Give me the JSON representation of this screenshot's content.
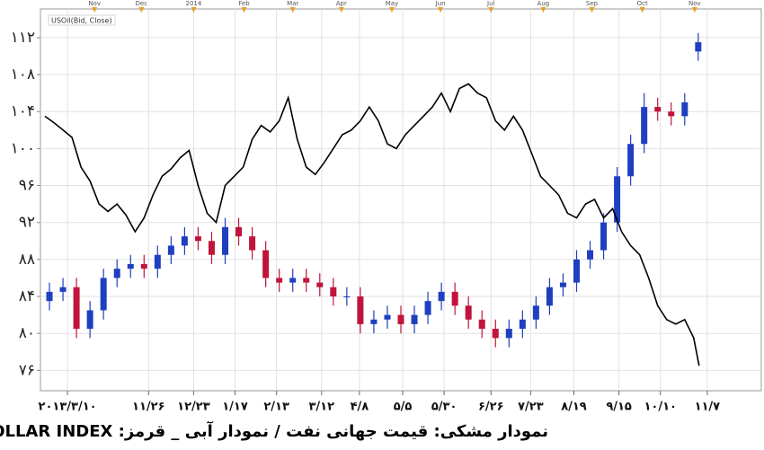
{
  "chart_data": {
    "type": "combo",
    "caption": "نمودار مشکی: قیمت جهانی نفت / نمودار آبی _ قرمز: DOLLAR INDEX",
    "ylim": [
      73.8,
      115.1
    ],
    "yticks": [
      {
        "value": 112,
        "label": "۱۱۲"
      },
      {
        "value": 108,
        "label": "۱۰۸"
      },
      {
        "value": 104,
        "label": "۱۰۴"
      },
      {
        "value": 100,
        "label": "۱۰۰"
      },
      {
        "value": 96,
        "label": "۹۶"
      },
      {
        "value": 92,
        "label": "۹۲"
      },
      {
        "value": 88,
        "label": "۸۸"
      },
      {
        "value": 84,
        "label": "۸۴"
      },
      {
        "value": 80,
        "label": "۸۰"
      },
      {
        "value": 76,
        "label": "۷۶"
      }
    ],
    "xlim": [
      0,
      400
    ],
    "xticks": [
      {
        "value": 15,
        "label": "۲۰۱۳/۳/۱۰"
      },
      {
        "value": 60,
        "label": "۱۱/۲۶"
      },
      {
        "value": 85,
        "label": "۱۲/۲۳"
      },
      {
        "value": 108,
        "label": "۱/۱۷"
      },
      {
        "value": 131,
        "label": "۲/۱۳"
      },
      {
        "value": 156,
        "label": "۳/۱۲"
      },
      {
        "value": 177,
        "label": "۴/۸"
      },
      {
        "value": 201,
        "label": "۵/۵"
      },
      {
        "value": 224,
        "label": "۵/۳۰"
      },
      {
        "value": 250,
        "label": "۶/۲۶"
      },
      {
        "value": 272,
        "label": "۷/۲۳"
      },
      {
        "value": 296,
        "label": "۸/۱۹"
      },
      {
        "value": 321,
        "label": "۹/۱۵"
      },
      {
        "value": 344,
        "label": "۱۰/۱۰"
      },
      {
        "value": 370,
        "label": "۱۱/۷"
      }
    ],
    "x2ticks": [
      {
        "value": 30,
        "label": "Nov"
      },
      {
        "value": 56,
        "label": "Dec"
      },
      {
        "value": 85,
        "label": "2014"
      },
      {
        "value": 113,
        "label": "Feb"
      },
      {
        "value": 140,
        "label": "Mar"
      },
      {
        "value": 167,
        "label": "Apr"
      },
      {
        "value": 195,
        "label": "May"
      },
      {
        "value": 222,
        "label": "Jun"
      },
      {
        "value": 250,
        "label": "Jul"
      },
      {
        "value": 279,
        "label": "Aug"
      },
      {
        "value": 306,
        "label": "Sep"
      },
      {
        "value": 334,
        "label": "Oct"
      },
      {
        "value": 363,
        "label": "Nov"
      }
    ],
    "grid": true,
    "series": [
      {
        "name": "USOil(Bid, Close)",
        "type": "line",
        "color": "#000000",
        "x": [
          2.5,
          7.5,
          12.5,
          17.5,
          22.5,
          27.5,
          32.5,
          37.5,
          42.5,
          47.5,
          52.5,
          57.5,
          62.5,
          67.5,
          72.5,
          77.5,
          82.5,
          87.5,
          92.5,
          97.5,
          102.5,
          107.5,
          112.5,
          117.5,
          122.5,
          127.5,
          132.5,
          137.5,
          142.5,
          147.5,
          152.5,
          157.5,
          162.5,
          167.5,
          172.5,
          177.5,
          182.5,
          187.5,
          192.5,
          197.5,
          202.5,
          207.5,
          212.5,
          217.5,
          222.5,
          227.5,
          232.5,
          237.5,
          242.5,
          247.5,
          252.5,
          257.5,
          262.5,
          267.5,
          272.5,
          277.5,
          282.5,
          287.5,
          292.5,
          297.5,
          302.5,
          307.5,
          312.5,
          317.5,
          322.5,
          327.5,
          332.5,
          337.5,
          342.5,
          347.5,
          352.5,
          357.5,
          362.5,
          365.5
        ],
        "values": [
          103.5,
          102.8,
          102,
          101.2,
          98,
          96.5,
          94,
          93.2,
          94,
          92.8,
          91,
          92.5,
          95,
          97,
          97.8,
          99,
          99.8,
          96,
          93,
          92,
          96,
          97,
          98,
          101,
          102.5,
          101.8,
          103,
          105.5,
          101,
          98,
          97.2,
          98.5,
          100,
          101.5,
          102,
          103,
          104.5,
          103,
          100.5,
          100,
          101.5,
          102.5,
          103.5,
          104.5,
          106,
          104,
          106.5,
          107,
          106,
          105.5,
          103,
          102,
          103.5,
          102,
          99.5,
          97,
          96,
          95,
          93,
          92.5,
          94,
          94.5,
          92.5,
          93.5,
          91,
          89.5,
          88.5,
          86,
          83,
          81.5,
          81,
          81.5,
          79.5,
          76.5
        ]
      },
      {
        "type": "candlestick",
        "up_color": "#1f3fbf",
        "down_color": "#c0143c",
        "x": [
          5,
          12.5,
          20,
          27.5,
          35,
          42.5,
          50,
          57.5,
          65,
          72.5,
          80,
          87.5,
          95,
          102.5,
          110,
          117.5,
          125,
          132.5,
          140,
          147.5,
          155,
          162.5,
          170,
          177.5,
          185,
          192.5,
          200,
          207.5,
          215,
          222.5,
          230,
          237.5,
          245,
          252.5,
          260,
          267.5,
          275,
          282.5,
          290,
          297.5,
          305,
          312.5,
          320,
          327.5,
          335,
          342.5,
          350,
          357.5,
          365
        ],
        "open": [
          83.5,
          84.5,
          85,
          80.5,
          82.5,
          86,
          87,
          87.5,
          87,
          88.5,
          89.5,
          90.5,
          90,
          88.5,
          91.5,
          90.5,
          89,
          86,
          85.5,
          86,
          85.5,
          85,
          84,
          84,
          81,
          81.5,
          82,
          81,
          82,
          83.5,
          84.5,
          83,
          81.5,
          80.5,
          79.5,
          80.5,
          81.5,
          83,
          85,
          85.5,
          88,
          89,
          92,
          97,
          100.5,
          104.5,
          104,
          103.5,
          110.5
        ],
        "high": [
          85.5,
          86,
          86,
          83.5,
          87,
          88,
          88.5,
          88.5,
          89.5,
          90.5,
          91.5,
          91.5,
          91,
          92.5,
          92.5,
          91.5,
          90,
          87,
          87,
          87,
          86.5,
          86,
          85,
          85,
          82.5,
          83,
          83,
          83,
          84.5,
          85.5,
          85.5,
          84,
          82.5,
          81.5,
          81.5,
          82.5,
          84,
          86,
          86.5,
          89,
          90,
          93,
          98,
          101.5,
          106,
          105.5,
          105,
          106,
          112.5
        ],
        "low": [
          82.5,
          83.5,
          79.5,
          79.5,
          81.5,
          85,
          86,
          86,
          86,
          87.5,
          88.5,
          89,
          87.5,
          87.5,
          89.5,
          88,
          85,
          84.5,
          84.5,
          84.5,
          84,
          83,
          83,
          80,
          80,
          80.5,
          80,
          80,
          81,
          82.5,
          82,
          80.5,
          79.5,
          78.5,
          78.5,
          79.5,
          80.5,
          82,
          84,
          84.5,
          87,
          88,
          91,
          96,
          99.5,
          103,
          102.5,
          102.5,
          109.5
        ],
        "close": [
          84.5,
          85,
          80.5,
          82.5,
          86,
          87,
          87.5,
          87,
          88.5,
          89.5,
          90.5,
          90,
          88.5,
          91.5,
          90.5,
          89,
          86,
          85.5,
          86,
          85.5,
          85,
          84,
          84,
          81,
          81.5,
          82,
          81,
          82,
          83.5,
          84.5,
          83,
          81.5,
          80.5,
          79.5,
          80.5,
          81.5,
          83,
          85,
          85.5,
          88,
          89,
          92,
          97,
          100.5,
          104.5,
          104,
          103.5,
          105,
          111.5
        ]
      }
    ]
  }
}
